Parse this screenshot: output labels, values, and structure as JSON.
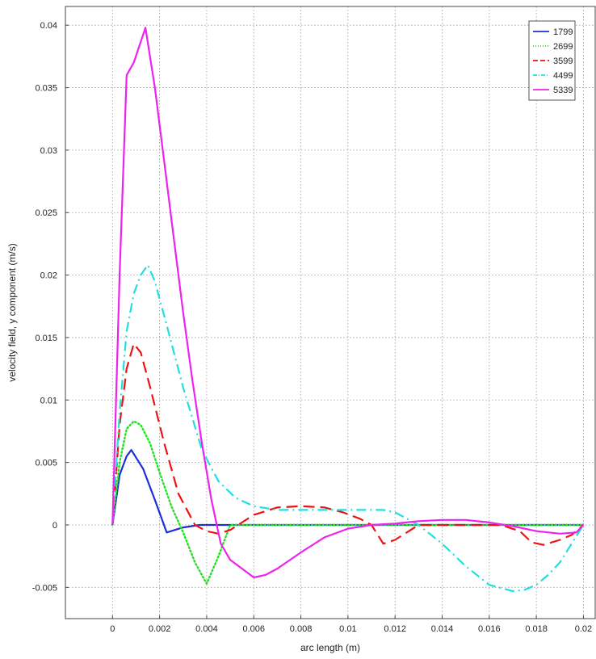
{
  "chart_data": {
    "type": "line",
    "title": "",
    "xlabel": "arc length (m)",
    "ylabel": "velocity field, y component (m/s)",
    "xlim": [
      -0.002,
      0.0205
    ],
    "ylim": [
      -0.0075,
      0.0415
    ],
    "x_ticks": [
      0,
      0.002,
      0.004,
      0.006,
      0.008,
      0.01,
      0.012,
      0.014,
      0.016,
      0.018,
      0.02
    ],
    "x_tick_labels": [
      "0",
      "0.002",
      "0.004",
      "0.006",
      "0.008",
      "0.01",
      "0.012",
      "0.014",
      "0.016",
      "0.018",
      "0.02"
    ],
    "y_ticks": [
      -0.005,
      0,
      0.005,
      0.01,
      0.015,
      0.02,
      0.025,
      0.03,
      0.035,
      0.04
    ],
    "y_tick_labels": [
      "-0.005",
      "0",
      "0.005",
      "0.01",
      "0.015",
      "0.02",
      "0.025",
      "0.03",
      "0.035",
      "0.04"
    ],
    "grid": true,
    "legend_position": "top-right",
    "series": [
      {
        "name": "1799",
        "color": "#1c2fd6",
        "dash": "solid",
        "x": [
          0,
          0.0003,
          0.0006,
          0.0008,
          0.0013,
          0.0018,
          0.0023,
          0.003,
          0.0037,
          0.005,
          0.01,
          0.015,
          0.02
        ],
        "y": [
          0,
          0.004,
          0.0055,
          0.006,
          0.0045,
          0.002,
          -0.0006,
          -0.0002,
          0,
          0,
          0,
          0,
          0
        ]
      },
      {
        "name": "2699",
        "color": "#22e022",
        "dash": "dotted",
        "x": [
          0,
          0.0003,
          0.0006,
          0.0009,
          0.0012,
          0.0016,
          0.002,
          0.0025,
          0.003,
          0.0035,
          0.004,
          0.0045,
          0.005,
          0.006,
          0.01,
          0.015,
          0.02
        ],
        "y": [
          0,
          0.005,
          0.0077,
          0.0083,
          0.008,
          0.0065,
          0.0042,
          0.0015,
          -0.0006,
          -0.003,
          -0.0047,
          -0.0025,
          0,
          0,
          0,
          0,
          0
        ]
      },
      {
        "name": "3599",
        "color": "#ee1111",
        "dash": "dashed",
        "x": [
          0,
          0.0003,
          0.0006,
          0.0009,
          0.0012,
          0.0016,
          0.0022,
          0.0028,
          0.0035,
          0.004,
          0.0045,
          0.005,
          0.006,
          0.007,
          0.008,
          0.009,
          0.0098,
          0.0105,
          0.011,
          0.0115,
          0.012,
          0.013,
          0.014,
          0.0155,
          0.0165,
          0.0173,
          0.0178,
          0.0183,
          0.019,
          0.0195,
          0.02
        ],
        "y": [
          0,
          0.008,
          0.0125,
          0.0145,
          0.0138,
          0.011,
          0.0065,
          0.0025,
          0,
          -0.0005,
          -0.0007,
          -0.0004,
          0.0008,
          0.0014,
          0.0015,
          0.0014,
          0.001,
          0.0005,
          0,
          -0.0015,
          -0.0012,
          0,
          0,
          0,
          0,
          -0.0005,
          -0.0014,
          -0.0016,
          -0.0012,
          -0.0008,
          0
        ]
      },
      {
        "name": "4499",
        "color": "#22dede",
        "dash": "dashdot",
        "x": [
          0,
          0.0003,
          0.0006,
          0.0009,
          0.0012,
          0.0015,
          0.0018,
          0.0023,
          0.003,
          0.0038,
          0.0045,
          0.0052,
          0.006,
          0.007,
          0.008,
          0.009,
          0.01,
          0.011,
          0.0115,
          0.012,
          0.0125,
          0.013,
          0.014,
          0.015,
          0.016,
          0.017,
          0.0175,
          0.018,
          0.0185,
          0.019,
          0.0195,
          0.02
        ],
        "y": [
          0,
          0.009,
          0.0155,
          0.0185,
          0.02,
          0.0208,
          0.0195,
          0.016,
          0.011,
          0.006,
          0.0035,
          0.0022,
          0.0015,
          0.0012,
          0.0012,
          0.0012,
          0.0012,
          0.0012,
          0.0012,
          0.001,
          0.0005,
          0,
          -0.0015,
          -0.0033,
          -0.0048,
          -0.0053,
          -0.0052,
          -0.0048,
          -0.004,
          -0.003,
          -0.0015,
          0
        ]
      },
      {
        "name": "5339",
        "color": "#ee22ee",
        "dash": "solid",
        "x": [
          0,
          0.0003,
          0.0006,
          0.0009,
          0.0014,
          0.0018,
          0.0022,
          0.0026,
          0.003,
          0.0034,
          0.0038,
          0.0042,
          0.0046,
          0.005,
          0.0055,
          0.006,
          0.0065,
          0.007,
          0.008,
          0.009,
          0.01,
          0.011,
          0.012,
          0.013,
          0.014,
          0.015,
          0.016,
          0.017,
          0.018,
          0.019,
          0.0197,
          0.02
        ],
        "y": [
          0,
          0.02,
          0.036,
          0.037,
          0.0398,
          0.035,
          0.029,
          0.023,
          0.017,
          0.0115,
          0.0065,
          0.002,
          -0.0015,
          -0.0028,
          -0.0035,
          -0.0042,
          -0.004,
          -0.0035,
          -0.0022,
          -0.001,
          -0.0003,
          0,
          0.0001,
          0.0003,
          0.0004,
          0.0004,
          0.0002,
          -0.0001,
          -0.0005,
          -0.0007,
          -0.0006,
          0
        ]
      }
    ]
  }
}
